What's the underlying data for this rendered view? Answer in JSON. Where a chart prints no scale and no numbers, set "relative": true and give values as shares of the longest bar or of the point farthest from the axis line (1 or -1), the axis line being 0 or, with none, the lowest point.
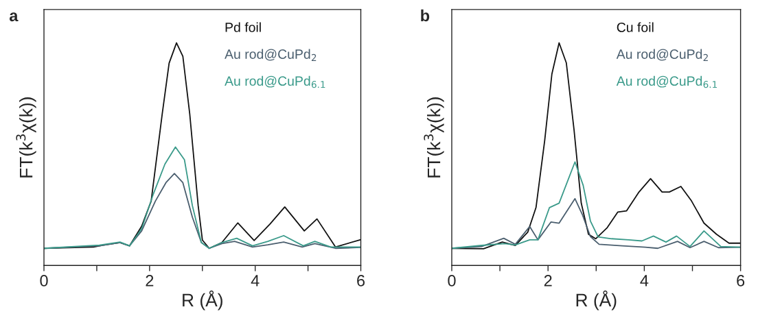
{
  "chart_data": [
    {
      "type": "line",
      "xlabel": "R (Å)",
      "ylabel": "FT(k$^{3}$χ(k))",
      "relative": true,
      "xlim": [
        0,
        6
      ],
      "xticks": [
        0,
        {
          "value": 1,
          "label": null
        },
        2,
        {
          "value": 3,
          "label": null
        },
        4,
        {
          "value": 5,
          "label": null
        },
        6
      ],
      "tick_labels": "x",
      "legend": "top right",
      "grid": false,
      "annotations": [
        "a"
      ],
      "series": [
        {
          "name": "Pd foil",
          "color": "#111111",
          "x": [
            0,
            0.94,
            1.12,
            1.44,
            1.62,
            1.85,
            2.03,
            2.24,
            2.37,
            2.51,
            2.63,
            2.76,
            2.92,
            3.0,
            3.13,
            3.37,
            3.67,
            3.98,
            4.28,
            4.56,
            4.93,
            5.17,
            5.52,
            6
          ],
          "values": [
            0.077,
            0.083,
            0.091,
            0.103,
            0.088,
            0.176,
            0.289,
            0.682,
            0.909,
            1.0,
            0.94,
            0.682,
            0.269,
            0.114,
            0.077,
            0.103,
            0.191,
            0.112,
            0.186,
            0.263,
            0.155,
            0.209,
            0.083,
            0.116
          ]
        },
        {
          "name": "Au rod@CuPd$_{2}$",
          "color": "#4a5e6e",
          "x": [
            0,
            1.05,
            1.44,
            1.62,
            1.85,
            2.11,
            2.31,
            2.47,
            2.63,
            2.81,
            2.98,
            3.13,
            3.37,
            3.61,
            3.95,
            4.24,
            4.54,
            4.89,
            5.13,
            5.52,
            6
          ],
          "values": [
            0.077,
            0.088,
            0.103,
            0.088,
            0.155,
            0.289,
            0.372,
            0.413,
            0.372,
            0.217,
            0.103,
            0.077,
            0.098,
            0.108,
            0.083,
            0.093,
            0.105,
            0.083,
            0.098,
            0.077,
            0.081
          ]
        },
        {
          "name": "Au rod@CuPd$_{6.1}$",
          "color": "#3a9a8a",
          "x": [
            0,
            1.05,
            1.44,
            1.62,
            1.85,
            2.07,
            2.29,
            2.49,
            2.66,
            2.81,
            2.98,
            3.13,
            3.37,
            3.65,
            3.95,
            4.24,
            4.54,
            4.91,
            5.13,
            5.43,
            6
          ],
          "values": [
            0.077,
            0.091,
            0.105,
            0.088,
            0.165,
            0.32,
            0.455,
            0.532,
            0.475,
            0.269,
            0.103,
            0.077,
            0.103,
            0.122,
            0.088,
            0.108,
            0.134,
            0.088,
            0.108,
            0.083,
            0.083
          ]
        }
      ]
    },
    {
      "type": "line",
      "xlabel": "R (Å)",
      "ylabel": "FT(k$^{3}$χ(k))",
      "relative": true,
      "xlim": [
        0,
        6
      ],
      "xticks": [
        0,
        {
          "value": 1,
          "label": null
        },
        2,
        {
          "value": 3,
          "label": null
        },
        4,
        {
          "value": 5,
          "label": null
        },
        6
      ],
      "tick_labels": "x",
      "legend": "top right",
      "grid": false,
      "annotations": [
        "b"
      ],
      "series": [
        {
          "name": "Cu foil",
          "color": "#111111",
          "x": [
            0,
            0.66,
            1.05,
            1.32,
            1.58,
            1.75,
            1.93,
            2.08,
            2.23,
            2.38,
            2.54,
            2.69,
            2.84,
            2.99,
            3.23,
            3.45,
            3.63,
            3.89,
            4.13,
            4.37,
            4.52,
            4.76,
            4.98,
            5.24,
            5.5,
            5.76,
            6
          ],
          "values": [
            0.077,
            0.075,
            0.105,
            0.09,
            0.15,
            0.26,
            0.56,
            0.86,
            1.0,
            0.91,
            0.61,
            0.28,
            0.14,
            0.12,
            0.17,
            0.24,
            0.245,
            0.33,
            0.39,
            0.33,
            0.33,
            0.355,
            0.29,
            0.19,
            0.14,
            0.1,
            0.1
          ]
        },
        {
          "name": "Au rod@CuPd$_{2}$",
          "color": "#4a5e6e",
          "x": [
            0,
            0.62,
            1.08,
            1.32,
            1.62,
            1.79,
            2.06,
            2.23,
            2.56,
            2.71,
            2.88,
            3.06,
            3.54,
            4.02,
            4.28,
            4.69,
            4.95,
            5.24,
            5.54,
            6
          ],
          "values": [
            0.077,
            0.085,
            0.122,
            0.095,
            0.175,
            0.115,
            0.195,
            0.19,
            0.3,
            0.23,
            0.13,
            0.095,
            0.088,
            0.082,
            0.077,
            0.108,
            0.08,
            0.108,
            0.08,
            0.082
          ]
        },
        {
          "name": "Au rod@CuPd$_{6.1}$",
          "color": "#3a9a8a",
          "x": [
            0,
            0.62,
            1.1,
            1.32,
            1.62,
            1.79,
            2.03,
            2.23,
            2.56,
            2.73,
            2.88,
            3.04,
            3.32,
            3.67,
            3.95,
            4.19,
            4.45,
            4.67,
            4.95,
            5.24,
            5.59,
            6
          ],
          "values": [
            0.077,
            0.09,
            0.098,
            0.092,
            0.115,
            0.115,
            0.26,
            0.28,
            0.465,
            0.36,
            0.2,
            0.128,
            0.12,
            0.115,
            0.11,
            0.132,
            0.105,
            0.132,
            0.085,
            0.155,
            0.085,
            0.082
          ]
        }
      ]
    }
  ]
}
